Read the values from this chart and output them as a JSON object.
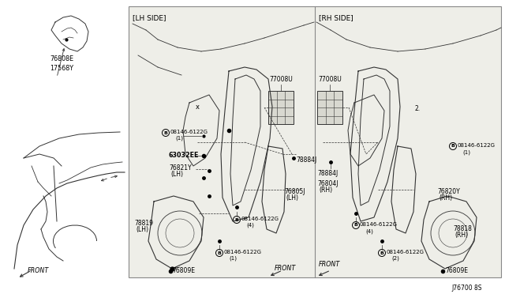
{
  "bg_color": "#ffffff",
  "line_color": "#333333",
  "light_line": "#555555",
  "diagram_number": "J76700 8S",
  "lh_label": "[LH SIDE]",
  "rh_label": "[RH SIDE]",
  "panel_bg": "#f0efea",
  "left_bg": "#ffffff",
  "border": "#888888",
  "fs_label": 6.0,
  "fs_small": 5.5,
  "fs_tiny": 5.0
}
